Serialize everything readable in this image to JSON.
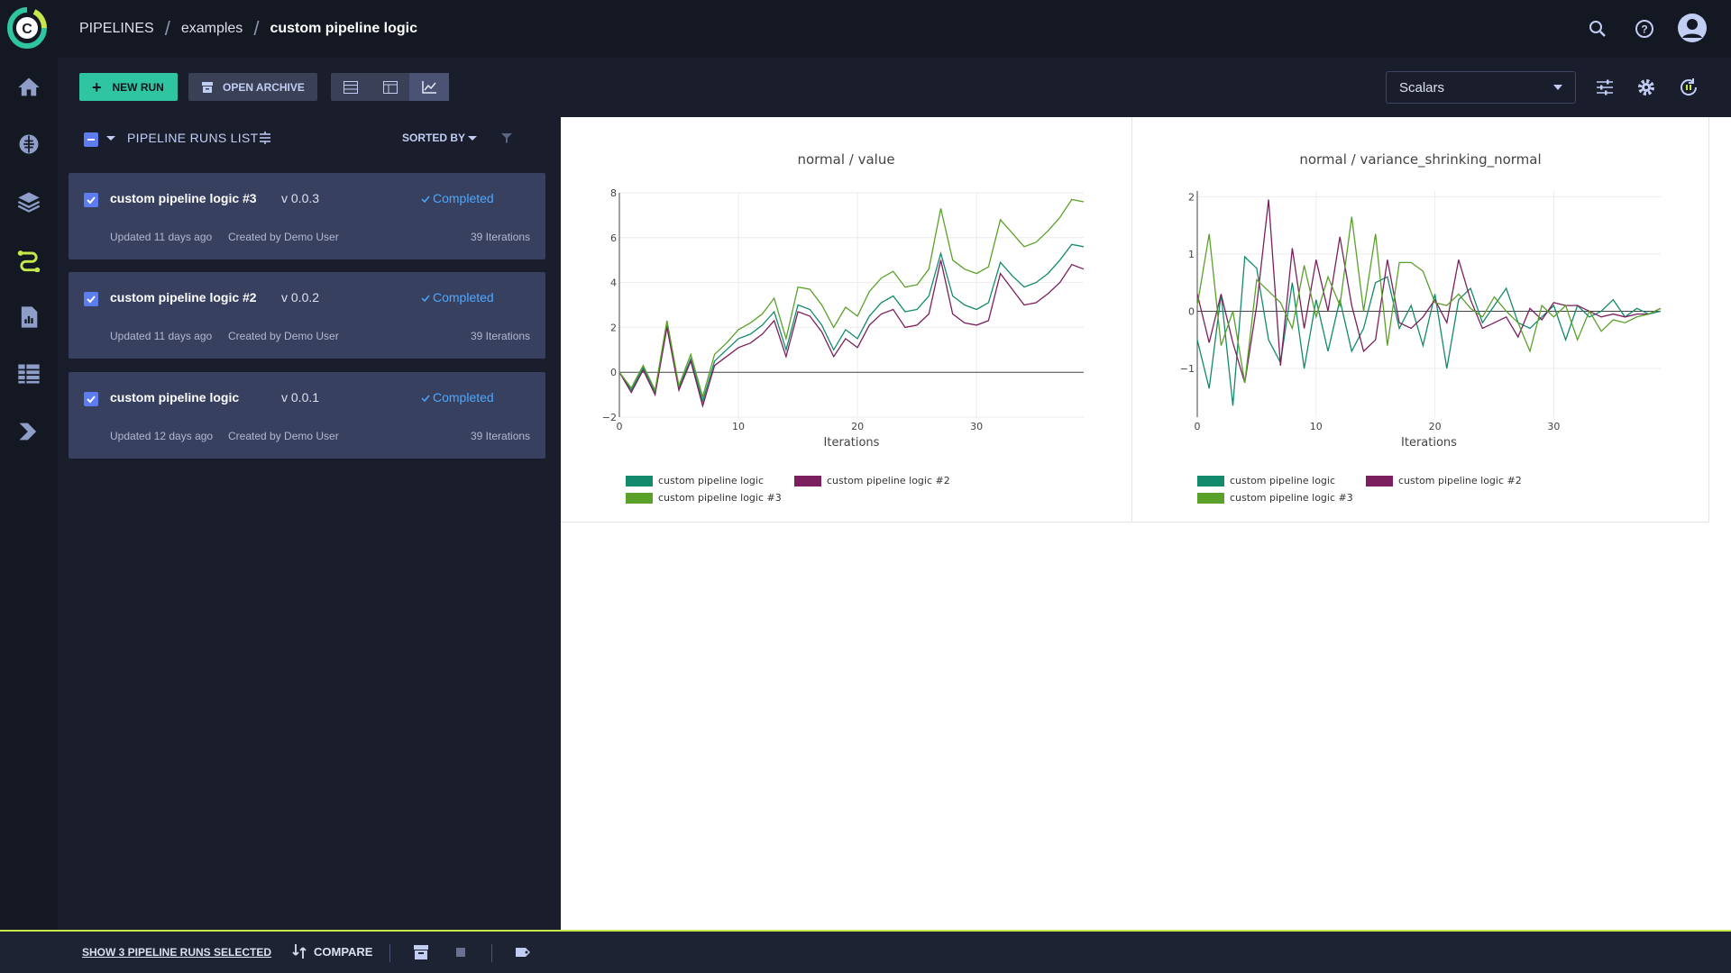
{
  "breadcrumb": {
    "items": [
      "PIPELINES",
      "examples",
      "custom pipeline logic"
    ]
  },
  "toolbar": {
    "new_run_label": "NEW RUN",
    "open_archive_label": "OPEN ARCHIVE",
    "view_mode_active": "chart-view",
    "metric_select_value": "Scalars"
  },
  "runs_list": {
    "header_label": "PIPELINE RUNS LIST",
    "sorted_by_label": "SORTED BY",
    "runs": [
      {
        "name": "custom pipeline logic #3",
        "version": "v 0.0.3",
        "status": "Completed",
        "updated": "Updated 11 days ago",
        "created_by": "Created by Demo User",
        "iterations": "39 Iterations",
        "checked": true
      },
      {
        "name": "custom pipeline logic #2",
        "version": "v 0.0.2",
        "status": "Completed",
        "updated": "Updated 11 days ago",
        "created_by": "Created by Demo User",
        "iterations": "39 Iterations",
        "checked": true
      },
      {
        "name": "custom pipeline logic",
        "version": "v 0.0.1",
        "status": "Completed",
        "updated": "Updated 12 days ago",
        "created_by": "Created by Demo User",
        "iterations": "39 Iterations",
        "checked": true
      }
    ]
  },
  "bottom_bar": {
    "show_selected_label": "SHOW 3 PIPELINE RUNS SELECTED",
    "compare_label": "COMPARE"
  },
  "colors": {
    "accent_green": "#2ec5a0",
    "status_blue": "#4aa8ff",
    "series_teal": "#138a6b",
    "series_magenta": "#7b1f5f",
    "series_green": "#5aa12a"
  },
  "chart_data": [
    {
      "type": "line",
      "title": "normal / value",
      "xlabel": "Iterations",
      "ylabel": "",
      "xlim": [
        0,
        39
      ],
      "ylim": [
        -2,
        8
      ],
      "x_ticks": [
        0,
        10,
        20,
        30
      ],
      "y_ticks": [
        -2,
        0,
        2,
        4,
        6,
        8
      ],
      "y_tick_labels": [
        "−2",
        "0",
        "2",
        "4",
        "6",
        "8"
      ],
      "legend_position": "bottom-left",
      "x": [
        0,
        1,
        2,
        3,
        4,
        5,
        6,
        7,
        8,
        9,
        10,
        11,
        12,
        13,
        14,
        15,
        16,
        17,
        18,
        19,
        20,
        21,
        22,
        23,
        24,
        25,
        26,
        27,
        28,
        29,
        30,
        31,
        32,
        33,
        34,
        35,
        36,
        37,
        38,
        39
      ],
      "series": [
        {
          "name": "custom pipeline logic",
          "color": "#138a6b",
          "values": [
            0,
            -0.8,
            0.2,
            -0.9,
            2.1,
            -0.7,
            0.6,
            -1.3,
            0.5,
            1.0,
            1.5,
            1.7,
            2.1,
            2.7,
            1.0,
            3.0,
            2.8,
            2.1,
            1.0,
            1.9,
            1.5,
            2.5,
            3.1,
            3.4,
            2.7,
            2.8,
            3.4,
            5.3,
            3.4,
            3.0,
            2.8,
            3.1,
            4.9,
            4.3,
            3.8,
            4.0,
            4.4,
            5.0,
            5.7,
            5.6
          ]
        },
        {
          "name": "custom pipeline logic #2",
          "color": "#7b1f5f",
          "values": [
            0,
            -0.9,
            0.1,
            -1.0,
            2.0,
            -0.8,
            0.5,
            -1.5,
            0.3,
            0.7,
            1.1,
            1.3,
            1.7,
            2.3,
            0.7,
            2.7,
            2.5,
            1.8,
            0.7,
            1.5,
            1.1,
            2.1,
            2.6,
            2.8,
            2.0,
            2.1,
            2.6,
            5.0,
            2.6,
            2.2,
            2.1,
            2.3,
            4.4,
            3.7,
            3.0,
            3.1,
            3.5,
            4.0,
            4.8,
            4.6
          ]
        },
        {
          "name": "custom pipeline logic #3",
          "color": "#5aa12a",
          "values": [
            0,
            -0.7,
            0.3,
            -0.8,
            2.3,
            -0.6,
            0.8,
            -1.1,
            0.8,
            1.3,
            1.9,
            2.2,
            2.6,
            3.3,
            1.5,
            3.8,
            3.7,
            3.0,
            2.0,
            2.9,
            2.5,
            3.6,
            4.2,
            4.5,
            3.8,
            3.9,
            4.6,
            7.3,
            5.0,
            4.6,
            4.4,
            4.7,
            6.8,
            6.2,
            5.6,
            5.8,
            6.3,
            6.9,
            7.7,
            7.6
          ]
        }
      ]
    },
    {
      "type": "line",
      "title": "normal / variance_shrinking_normal",
      "xlabel": "Iterations",
      "ylabel": "",
      "xlim": [
        0,
        39
      ],
      "ylim": [
        -1.85,
        2.1
      ],
      "x_ticks": [
        0,
        10,
        20,
        30
      ],
      "y_ticks": [
        -1,
        0,
        1,
        2
      ],
      "y_tick_labels": [
        "−1",
        "0",
        "1",
        "2"
      ],
      "legend_position": "bottom-left",
      "x": [
        0,
        1,
        2,
        3,
        4,
        5,
        6,
        7,
        8,
        9,
        10,
        11,
        12,
        13,
        14,
        15,
        16,
        17,
        18,
        19,
        20,
        21,
        22,
        23,
        24,
        25,
        26,
        27,
        28,
        29,
        30,
        31,
        32,
        33,
        34,
        35,
        36,
        37,
        38,
        39
      ],
      "series": [
        {
          "name": "custom pipeline logic",
          "color": "#138a6b",
          "values": [
            -0.5,
            -1.35,
            0.3,
            -1.65,
            0.95,
            0.75,
            -0.5,
            -0.9,
            0.5,
            -1.0,
            0.2,
            -0.7,
            0.2,
            -0.7,
            -0.3,
            0.5,
            0.6,
            -0.3,
            0.1,
            -0.6,
            0.3,
            -1.0,
            0.2,
            0.4,
            -0.2,
            0.1,
            0.4,
            -0.2,
            -0.3,
            -0.1,
            0.1,
            -0.5,
            0.1,
            -0.1,
            0.0,
            0.2,
            -0.1,
            0.05,
            -0.05,
            0.0
          ]
        },
        {
          "name": "custom pipeline logic #2",
          "color": "#7b1f5f",
          "values": [
            0.3,
            -0.55,
            0.3,
            -0.55,
            -1.25,
            0.1,
            1.95,
            -0.95,
            1.1,
            -0.3,
            0.9,
            0.0,
            1.3,
            0.1,
            -0.7,
            -0.5,
            0.9,
            -0.2,
            -0.3,
            -0.1,
            0.2,
            -0.2,
            0.9,
            0.2,
            -0.3,
            -0.2,
            -0.1,
            -0.45,
            0.05,
            -0.15,
            0.15,
            0.1,
            0.1,
            0.0,
            -0.1,
            -0.05,
            -0.1,
            -0.05,
            -0.05,
            0.05
          ]
        },
        {
          "name": "custom pipeline logic #3",
          "color": "#5aa12a",
          "values": [
            0.1,
            1.35,
            -0.6,
            0.0,
            -1.25,
            0.55,
            0.35,
            0.15,
            -0.3,
            0.8,
            -0.1,
            0.6,
            0.1,
            1.65,
            0.0,
            1.35,
            -0.6,
            0.85,
            0.85,
            0.7,
            0.15,
            0.1,
            0.3,
            0.05,
            -0.1,
            0.25,
            0.0,
            -0.2,
            -0.7,
            0.1,
            -0.1,
            0.1,
            -0.5,
            0.0,
            -0.35,
            -0.15,
            -0.2,
            -0.1,
            -0.05,
            0.05
          ]
        }
      ]
    }
  ]
}
